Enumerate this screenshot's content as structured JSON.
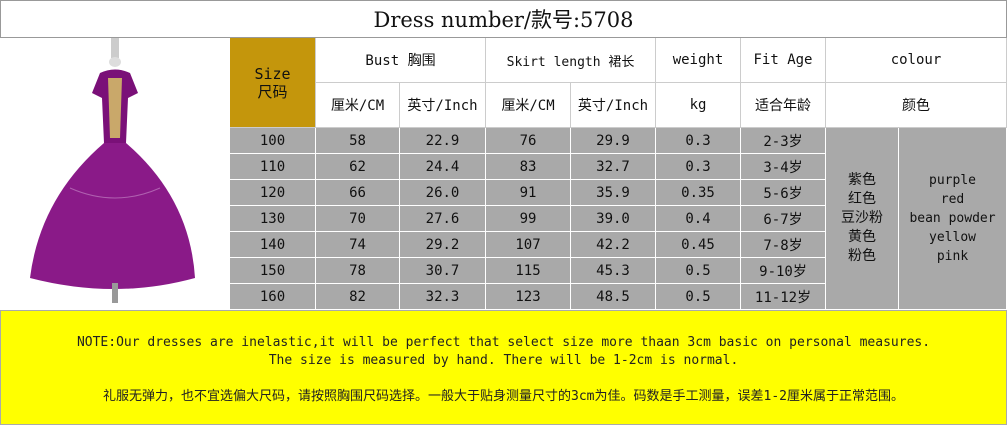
{
  "title": "Dress number/款号:5708",
  "header": {
    "size_en": "Size",
    "size_cn": "尺码",
    "bust": "Bust 胸围",
    "skirt": "Skirt length  裙长",
    "weight": "weight",
    "fit_age": "Fit Age",
    "colour": "colour",
    "cm1": "厘米/CM",
    "inch1": "英寸/Inch",
    "cm2": "厘米/CM",
    "inch2": "英寸/Inch",
    "kg": "kg",
    "age_cn": "适合年龄",
    "colour_cn": "颜色"
  },
  "rows": [
    [
      "100",
      "58",
      "22.9",
      "76",
      "29.9",
      "0.3",
      "2-3岁"
    ],
    [
      "110",
      "62",
      "24.4",
      "83",
      "32.7",
      "0.3",
      "3-4岁"
    ],
    [
      "120",
      "66",
      "26.0",
      "91",
      "35.9",
      "0.35",
      "5-6岁"
    ],
    [
      "130",
      "70",
      "27.6",
      "99",
      "39.0",
      "0.4",
      "6-7岁"
    ],
    [
      "140",
      "74",
      "29.2",
      "107",
      "42.2",
      "0.45",
      "7-8岁"
    ],
    [
      "150",
      "78",
      "30.7",
      "115",
      "45.3",
      "0.5",
      "9-10岁"
    ],
    [
      "160",
      "82",
      "32.3",
      "123",
      "48.5",
      "0.5",
      "11-12岁"
    ]
  ],
  "colours_cn": [
    "紫色",
    "红色",
    "豆沙粉",
    "黄色",
    "粉色"
  ],
  "colours_en": [
    "purple",
    "red",
    "bean powder",
    "yellow",
    "pink"
  ],
  "note": {
    "line1": "NOTE:Our dresses are inelastic,it will be perfect that select size more thaan 3cm basic on personal measures.",
    "line2": "The size is measured by hand. There will be 1-2cm is normal.",
    "line3": "礼服无弹力，也不宜选偏大尺码，请按照胸围尺码选择。一般大于贴身测量尺寸的3cm为佳。码数是手工测量，误差1-2厘米属于正常范围。"
  },
  "colors": {
    "size_header": "#c4960c",
    "data_bg": "#a9a9a9",
    "note_bg": "#ffff00",
    "dress": "#7a1078"
  }
}
